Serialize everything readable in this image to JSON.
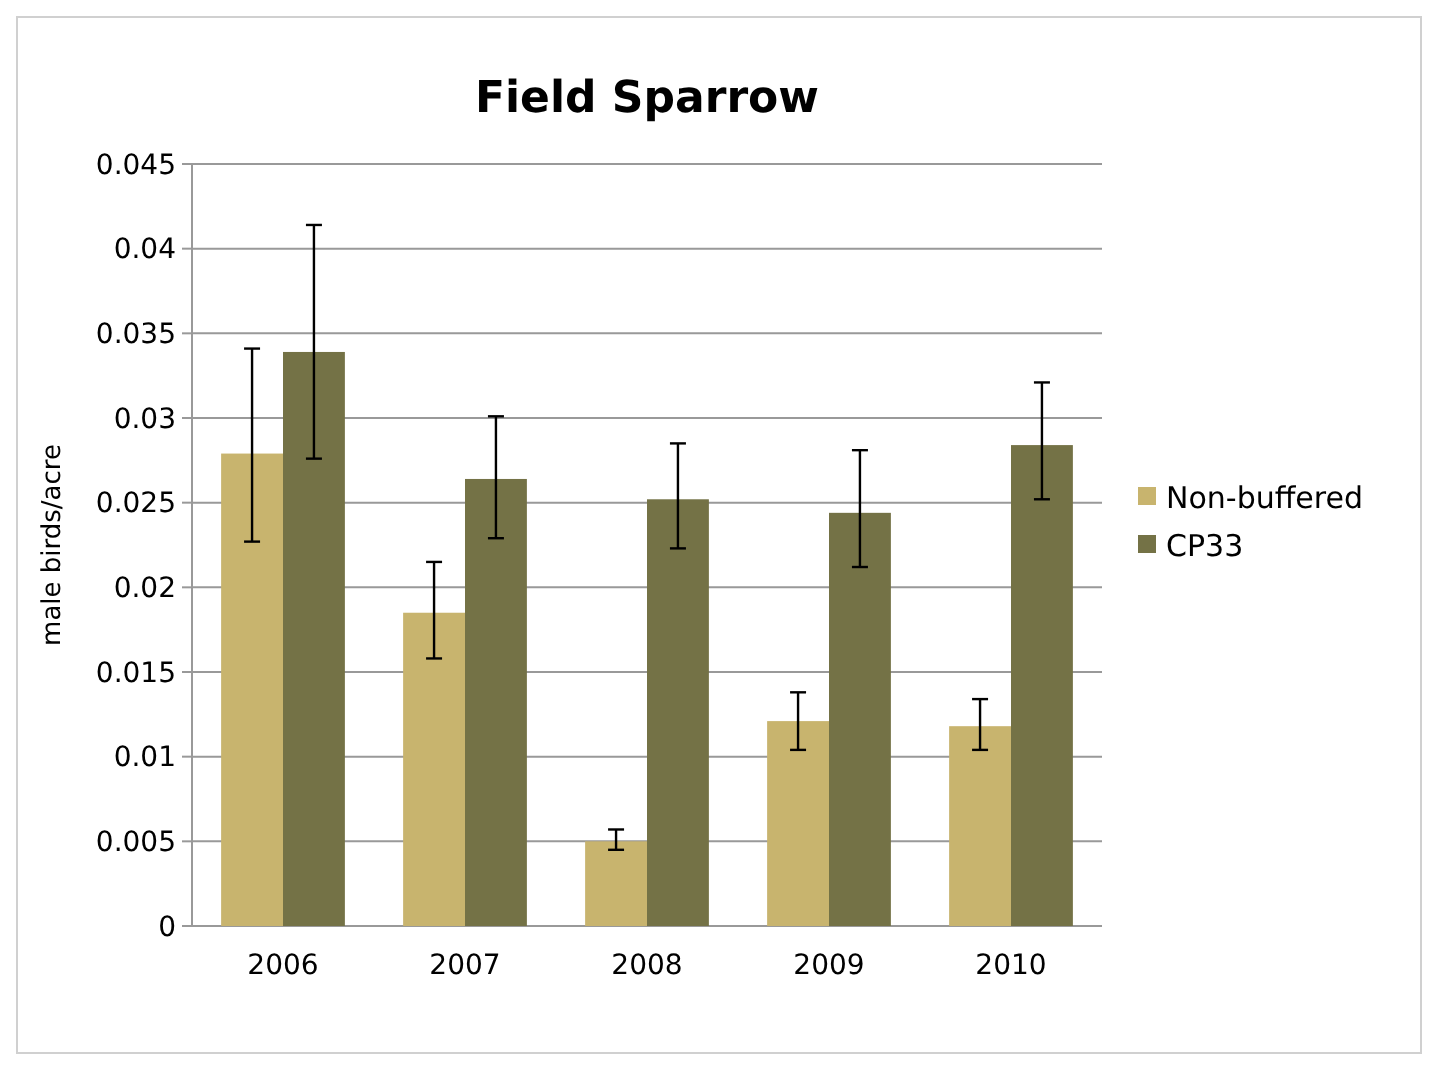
{
  "chart_data": {
    "type": "bar",
    "title": "Field Sparrow",
    "ylabel": "male birds/acre",
    "categories": [
      "2006",
      "2007",
      "2008",
      "2009",
      "2010"
    ],
    "series": [
      {
        "name": "Non-buffered",
        "color": "#c8b46e",
        "values": [
          0.0279,
          0.0185,
          0.005,
          0.0121,
          0.0118
        ],
        "errors": [
          [
            0.0227,
            0.0341
          ],
          [
            0.0158,
            0.0215
          ],
          [
            0.0045,
            0.0057
          ],
          [
            0.0104,
            0.0138
          ],
          [
            0.0104,
            0.0134
          ]
        ]
      },
      {
        "name": "CP33",
        "color": "#747246",
        "values": [
          0.0339,
          0.0264,
          0.0252,
          0.0244,
          0.0284
        ],
        "errors": [
          [
            0.0276,
            0.0414
          ],
          [
            0.0229,
            0.0301
          ],
          [
            0.0223,
            0.0285
          ],
          [
            0.0212,
            0.0281
          ],
          [
            0.0252,
            0.0321
          ]
        ]
      }
    ],
    "ylim": [
      0,
      0.045
    ],
    "yticks": [
      0,
      0.005,
      0.01,
      0.015,
      0.02,
      0.025,
      0.03,
      0.035,
      0.04,
      0.045
    ],
    "grid": "y",
    "legend": "right"
  }
}
